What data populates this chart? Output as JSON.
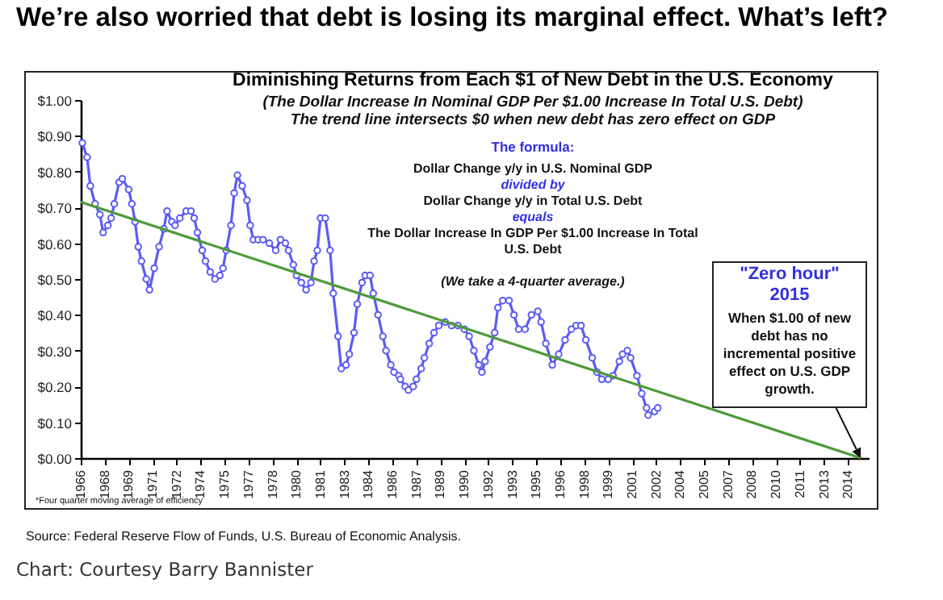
{
  "chart_data": {
    "type": "line",
    "title": "We’re also worried that debt is losing its marginal effect. What’s left?",
    "subtitle": "Diminishing Returns from Each $1 of New Debt in the U.S. Economy",
    "annotations": [
      "(The Dollar Increase In Nominal GDP Per $1.00 Increase In Total U.S. Debt)",
      "The trend line intersects $0 when new debt has zero effect on GDP",
      "The formula:",
      "Dollar Change y/y in U.S. Nominal GDP",
      "divided by",
      "Dollar Change y/y in Total U.S. Debt",
      "equals",
      "The Dollar Increase In GDP Per $1.00 Increase In Total U.S. Debt",
      "(We take a 4-quarter average.)",
      "\"Zero hour\"",
      "2015",
      "When $1.00 of new debt has no incremental positive effect on U.S. GDP growth.",
      "*Four quarter moving average of efficiency",
      "Source: Federal Reserve Flow of Funds, U.S. Bureau of Economic Analysis.",
      "Chart: Courtesy Barry Bannister"
    ],
    "marker": "circle",
    "xlim": [
      1966,
      2015.3
    ],
    "xticks": [
      1966,
      {
        "value": 1967.5,
        "label": "1968"
      },
      1969,
      {
        "value": 1970.5,
        "label": "1971"
      },
      1972,
      {
        "value": 1973.5,
        "label": "1974"
      },
      1975,
      {
        "value": 1976.5,
        "label": "1977"
      },
      1978,
      {
        "value": 1979.5,
        "label": "1980"
      },
      1981,
      {
        "value": 1982.5,
        "label": "1983"
      },
      1984,
      {
        "value": 1985.5,
        "label": "1986"
      },
      1987,
      {
        "value": 1988.5,
        "label": "1989"
      },
      1990,
      {
        "value": 1991.5,
        "label": "1992"
      },
      1993,
      {
        "value": 1994.5,
        "label": "1995"
      },
      1996,
      {
        "value": 1997.5,
        "label": "1998"
      },
      1999,
      {
        "value": 2000.5,
        "label": "2001"
      },
      2002,
      {
        "value": 2003.5,
        "label": "2004"
      },
      2005,
      {
        "value": 2006.5,
        "label": "2007"
      },
      2008,
      {
        "value": 2009.5,
        "label": "2010"
      },
      2011,
      {
        "value": 2012.5,
        "label": "2013"
      },
      2014
    ],
    "ylim": [
      0,
      1
    ],
    "yticks": [
      {
        "value": 0,
        "label": "$0.00"
      },
      {
        "value": 0.1,
        "label": "$0.10"
      },
      {
        "value": 0.2,
        "label": "$0.20"
      },
      {
        "value": 0.3,
        "label": "$0.30"
      },
      {
        "value": 0.4,
        "label": "$0.40"
      },
      {
        "value": 0.5,
        "label": "$0.50"
      },
      {
        "value": 0.6,
        "label": "$0.60"
      },
      {
        "value": 0.7,
        "label": "$0.70"
      },
      {
        "value": 0.8,
        "label": "$0.80"
      },
      {
        "value": 0.9,
        "label": "$0.90"
      },
      {
        "value": 1,
        "label": "$1.00"
      }
    ],
    "series": [
      {
        "color": "#5b5bf5",
        "x": [
          1966.1,
          1966.4,
          1966.6,
          1966.9,
          1967.2,
          1967.4,
          1967.7,
          1967.9,
          1968.1,
          1968.4,
          1968.6,
          1969.0,
          1969.2,
          1969.4,
          1969.6,
          1969.8,
          1970.1,
          1970.3,
          1970.6,
          1970.9,
          1971.2,
          1971.4,
          1971.7,
          1971.9,
          1972.2,
          1972.6,
          1972.9,
          1973.1,
          1973.3,
          1973.6,
          1973.8,
          1974.1,
          1974.4,
          1974.7,
          1974.9,
          1975.1,
          1975.4,
          1975.6,
          1975.8,
          1976.1,
          1976.4,
          1976.6,
          1976.8,
          1977.1,
          1977.4,
          1977.8,
          1978.2,
          1978.5,
          1978.8,
          1979.0,
          1979.3,
          1979.5,
          1979.8,
          1980.1,
          1980.4,
          1980.6,
          1980.8,
          1981.0,
          1981.3,
          1981.6,
          1981.8,
          1982.1,
          1982.3,
          1982.6,
          1982.8,
          1983.1,
          1983.3,
          1983.6,
          1983.8,
          1984.1,
          1984.3,
          1984.6,
          1984.9,
          1985.1,
          1985.4,
          1985.6,
          1985.9,
          1986.0,
          1986.3,
          1986.5,
          1986.8,
          1987.0,
          1987.3,
          1987.5,
          1987.8,
          1988.1,
          1988.4,
          1988.8,
          1989.2,
          1989.6,
          1990.0,
          1990.3,
          1990.6,
          1990.9,
          1991.1,
          1991.3,
          1991.6,
          1991.9,
          1992.1,
          1992.4,
          1992.8,
          1993.1,
          1993.4,
          1993.8,
          1994.2,
          1994.6,
          1994.8,
          1995.1,
          1995.5,
          1995.9,
          1996.3,
          1996.7,
          1997.0,
          1997.3,
          1997.6,
          1998.0,
          1998.3,
          1998.6,
          1999.0,
          1999.3,
          1999.7,
          1999.9,
          2000.2,
          2000.4,
          2000.8,
          2001.1,
          2001.4,
          2001.5,
          2001.9,
          2002.1
        ],
        "values": [
          0.88,
          0.84,
          0.76,
          0.71,
          0.68,
          0.63,
          0.65,
          0.67,
          0.71,
          0.77,
          0.78,
          0.75,
          0.71,
          0.66,
          0.59,
          0.55,
          0.5,
          0.47,
          0.53,
          0.59,
          0.64,
          0.69,
          0.66,
          0.65,
          0.67,
          0.69,
          0.69,
          0.67,
          0.63,
          0.58,
          0.55,
          0.52,
          0.5,
          0.51,
          0.53,
          0.58,
          0.65,
          0.74,
          0.79,
          0.76,
          0.72,
          0.65,
          0.61,
          0.61,
          0.61,
          0.6,
          0.58,
          0.61,
          0.6,
          0.58,
          0.54,
          0.51,
          0.49,
          0.47,
          0.49,
          0.55,
          0.58,
          0.67,
          0.67,
          0.58,
          0.46,
          0.34,
          0.25,
          0.26,
          0.29,
          0.35,
          0.43,
          0.49,
          0.51,
          0.51,
          0.46,
          0.4,
          0.34,
          0.3,
          0.26,
          0.24,
          0.23,
          0.22,
          0.2,
          0.19,
          0.2,
          0.22,
          0.25,
          0.28,
          0.32,
          0.35,
          0.37,
          0.38,
          0.37,
          0.37,
          0.36,
          0.34,
          0.3,
          0.26,
          0.24,
          0.27,
          0.31,
          0.35,
          0.42,
          0.44,
          0.44,
          0.4,
          0.36,
          0.36,
          0.4,
          0.41,
          0.38,
          0.32,
          0.26,
          0.29,
          0.33,
          0.36,
          0.37,
          0.37,
          0.33,
          0.28,
          0.24,
          0.22,
          0.22,
          0.23,
          0.27,
          0.29,
          0.3,
          0.28,
          0.23,
          0.18,
          0.14,
          0.12,
          0.13,
          0.14
        ]
      },
      {
        "type": "line",
        "marker": "none",
        "color": "#4e9a3c",
        "x": [
          1966,
          2014.8
        ],
        "values": [
          0.715,
          0
        ]
      }
    ]
  }
}
